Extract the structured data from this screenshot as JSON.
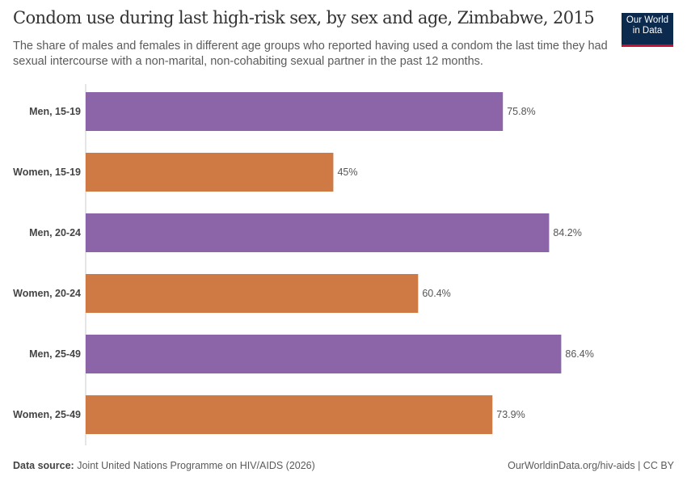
{
  "header": {
    "title": "Condom use during last high-risk sex, by sex and age, Zimbabwe, 2015",
    "subtitle": "The share of males and females in different age groups who reported having used a condom the last time they had sexual intercourse with a non-marital, non-cohabiting sexual partner in the past 12 months.",
    "logo": "Our World in Data"
  },
  "footer": {
    "source_label": "Data source:",
    "source": "Joint United Nations Programme on HIV/AIDS (2026)",
    "license": "OurWorldinData.org/hiv-aids | CC BY"
  },
  "colors": {
    "men": "#8c64a8",
    "women": "#cf7a45"
  },
  "chart_data": {
    "type": "bar",
    "orientation": "horizontal",
    "xlim": [
      0,
      100
    ],
    "unit": "%",
    "categories": [
      "Men, 15-19",
      "Women, 15-19",
      "Men, 20-24",
      "Women, 20-24",
      "Men, 25-49",
      "Women, 25-49"
    ],
    "values": [
      75.8,
      45,
      84.2,
      60.4,
      86.4,
      73.9
    ],
    "labels": [
      "75.8%",
      "45%",
      "84.2%",
      "60.4%",
      "86.4%",
      "73.9%"
    ],
    "groups": [
      "men",
      "women",
      "men",
      "women",
      "men",
      "women"
    ]
  }
}
